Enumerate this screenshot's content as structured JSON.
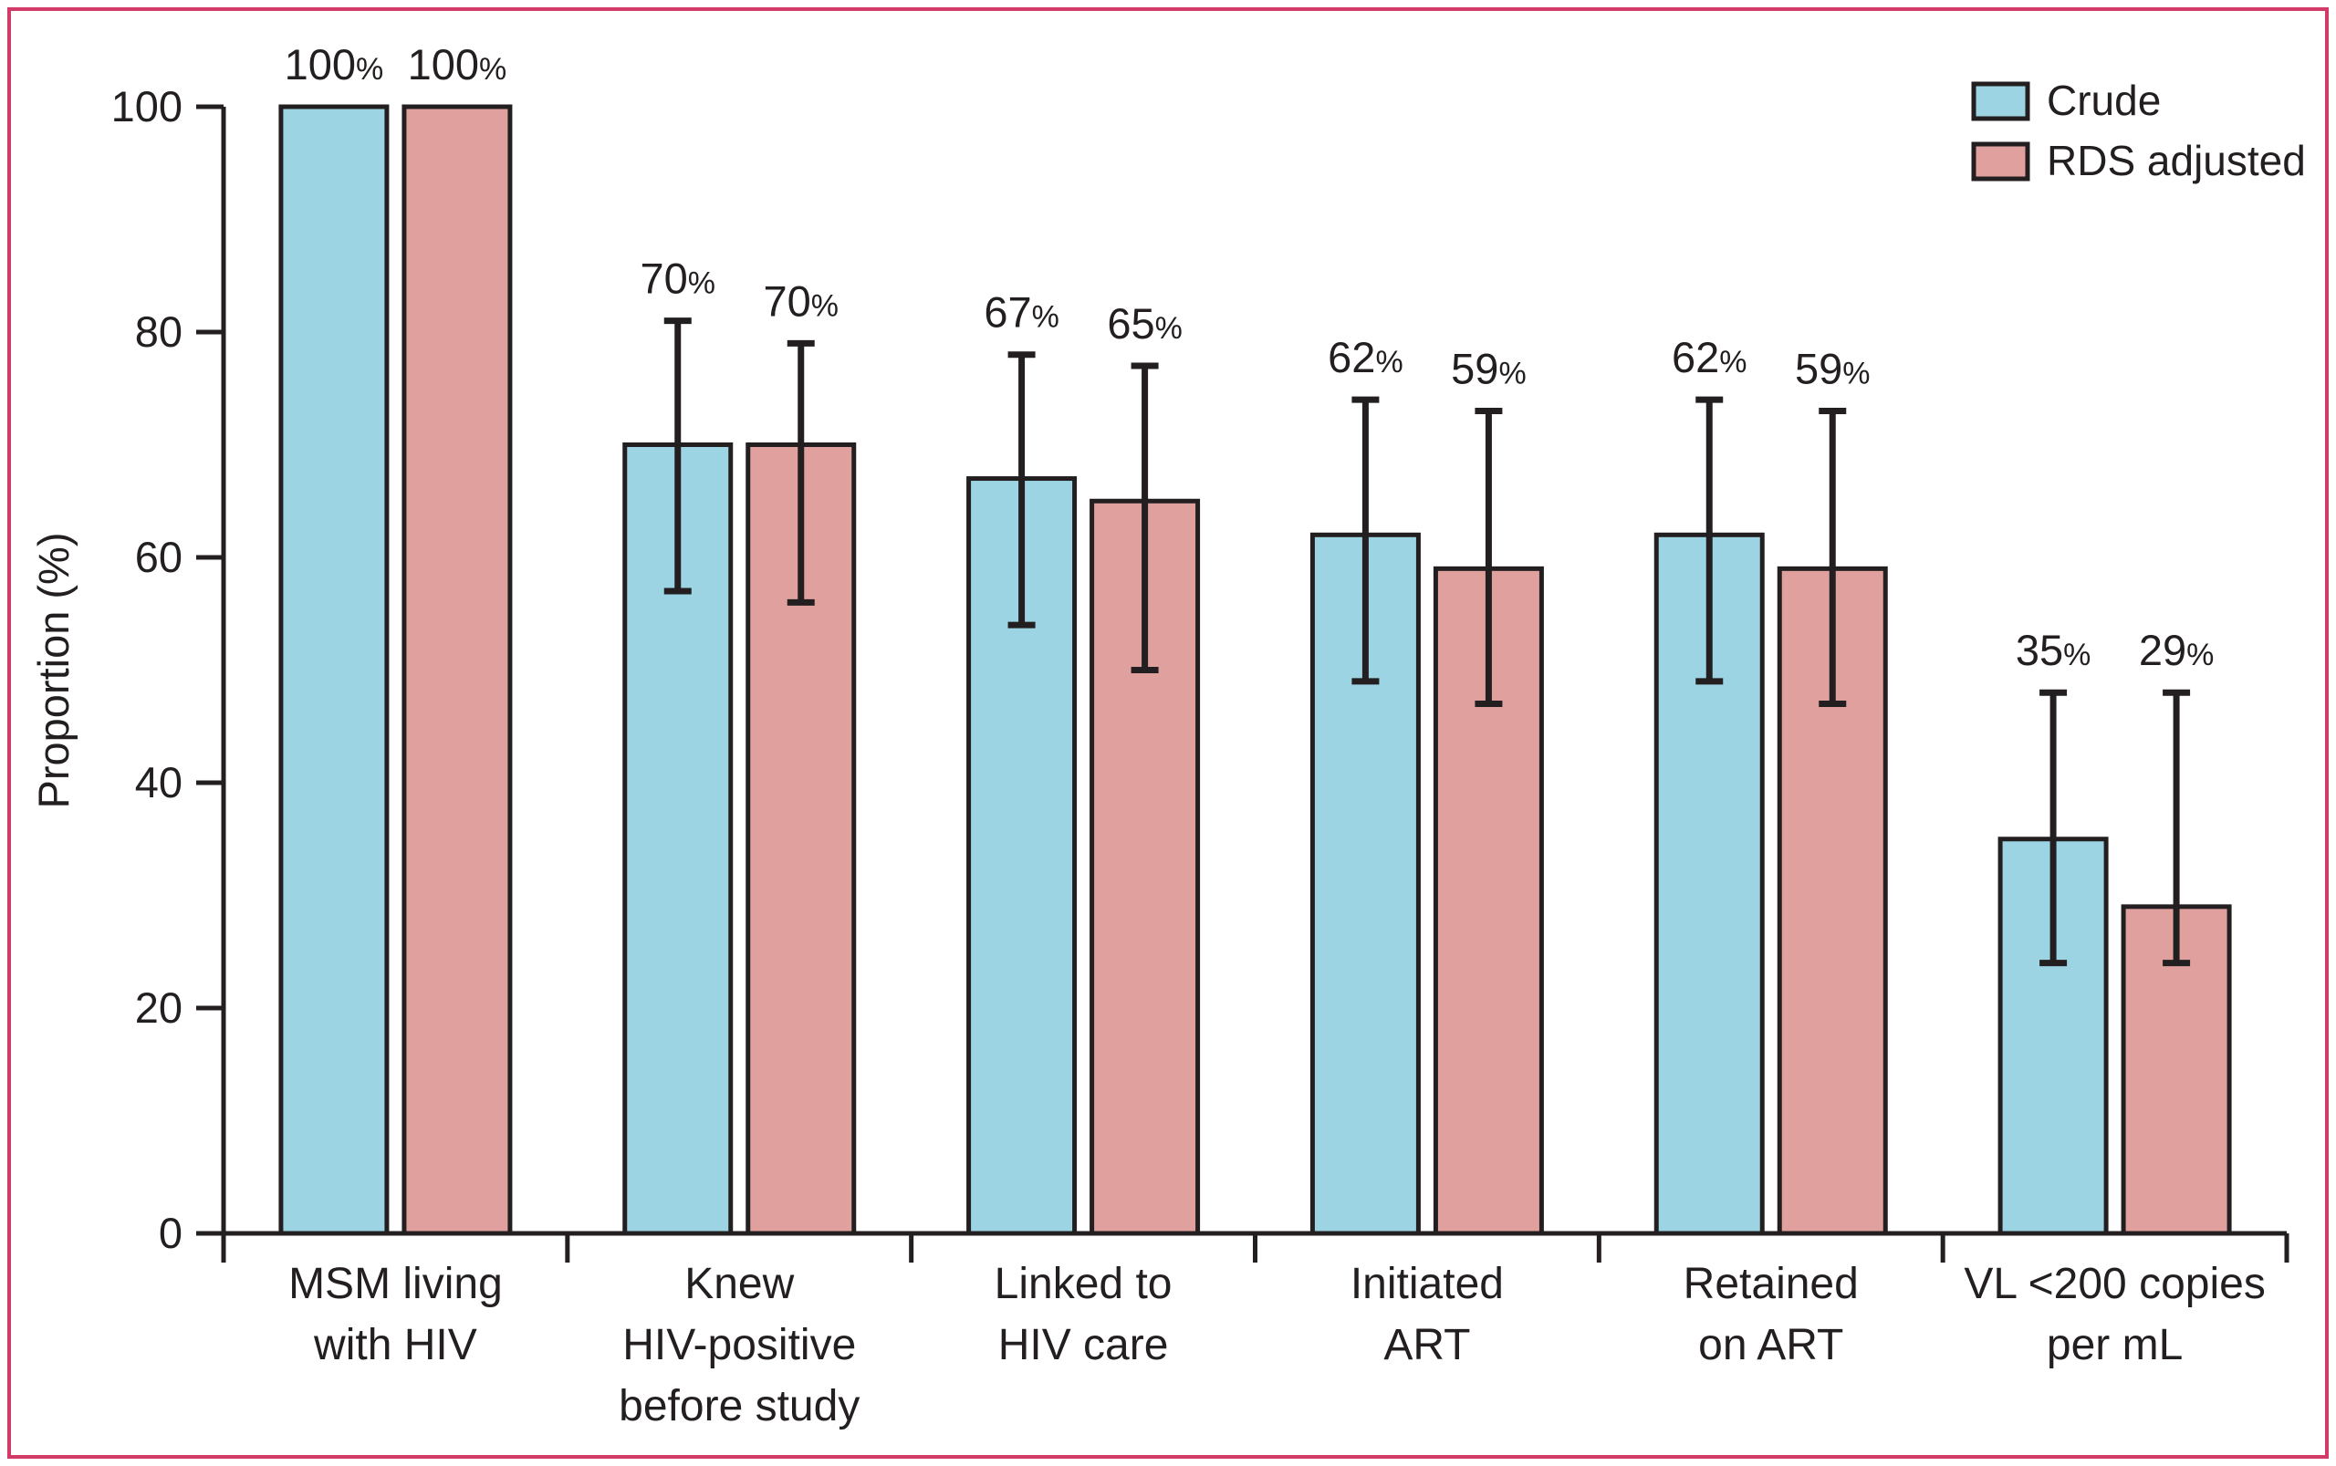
{
  "figure": {
    "frame_color": "#d23a68",
    "background_color": "#ffffff",
    "axis_color": "#231f20",
    "text_color": "#231f20"
  },
  "chart_data": {
    "type": "bar",
    "title": "",
    "xlabel": "",
    "ylabel": "Proportion (%)",
    "ylim": [
      0,
      100
    ],
    "yticks": [
      0,
      20,
      40,
      60,
      80,
      100
    ],
    "grid": false,
    "legend_position": "top-right",
    "error_bars": true,
    "categories": [
      {
        "lines": [
          "MSM living",
          "with HIV"
        ]
      },
      {
        "lines": [
          "Knew",
          "HIV-positive",
          "before study"
        ]
      },
      {
        "lines": [
          "Linked to",
          "HIV care"
        ]
      },
      {
        "lines": [
          "Initiated",
          "ART"
        ]
      },
      {
        "lines": [
          "Retained",
          "on ART"
        ]
      },
      {
        "lines": [
          "VL <200 copies",
          "per mL"
        ]
      }
    ],
    "series": [
      {
        "name": "Crude",
        "color": "#9cd4e4",
        "values": [
          100,
          70,
          67,
          62,
          62,
          35
        ],
        "ci_low": [
          null,
          57,
          54,
          49,
          49,
          24
        ],
        "ci_high": [
          null,
          81,
          78,
          74,
          74,
          48
        ],
        "labels": [
          "100%",
          "70%",
          "67%",
          "62%",
          "62%",
          "35%"
        ]
      },
      {
        "name": "RDS adjusted",
        "color": "#dfa09e",
        "values": [
          100,
          70,
          65,
          59,
          59,
          29
        ],
        "ci_low": [
          null,
          56,
          50,
          47,
          47,
          24
        ],
        "ci_high": [
          null,
          79,
          77,
          73,
          73,
          48
        ],
        "labels": [
          "100%",
          "70%",
          "65%",
          "59%",
          "59%",
          "29%"
        ]
      }
    ]
  }
}
